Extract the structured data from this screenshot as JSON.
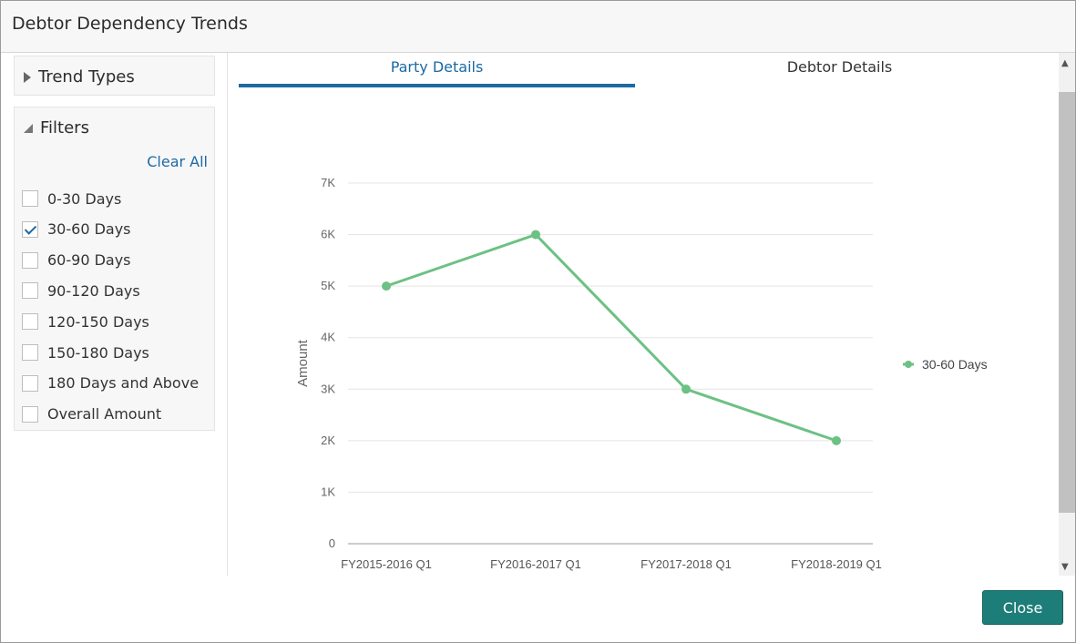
{
  "dialog": {
    "title": "Debtor Dependency Trends"
  },
  "sidebar": {
    "trend_types_label": "Trend Types",
    "filters_label": "Filters",
    "clear_all_label": "Clear All",
    "filters": [
      {
        "label": "0-30 Days",
        "checked": false
      },
      {
        "label": "30-60 Days",
        "checked": true
      },
      {
        "label": "60-90 Days",
        "checked": false
      },
      {
        "label": "90-120 Days",
        "checked": false
      },
      {
        "label": "120-150 Days",
        "checked": false
      },
      {
        "label": "150-180 Days",
        "checked": false
      },
      {
        "label": "180 Days and Above",
        "checked": false
      },
      {
        "label": "Overall Amount",
        "checked": false
      }
    ]
  },
  "tabs": [
    {
      "label": "Party Details",
      "active": true
    },
    {
      "label": "Debtor Details",
      "active": false
    }
  ],
  "colors": {
    "accent": "#1c6aa5",
    "series": "#6cc184",
    "button": "#1d7d78"
  },
  "footer": {
    "close_label": "Close"
  },
  "chart_data": {
    "type": "line",
    "categories": [
      "FY2015-2016 Q1",
      "FY2016-2017 Q1",
      "FY2017-2018 Q1",
      "FY2018-2019 Q1"
    ],
    "series": [
      {
        "name": "30-60 Days",
        "values": [
          5000,
          6000,
          3000,
          2000
        ]
      }
    ],
    "ylabel": "Amount",
    "xlabel": "",
    "ylim": [
      0,
      7000
    ],
    "yticks": [
      "0",
      "1K",
      "2K",
      "3K",
      "4K",
      "5K",
      "6K",
      "7K"
    ],
    "grid": true,
    "legend_position": "right"
  }
}
